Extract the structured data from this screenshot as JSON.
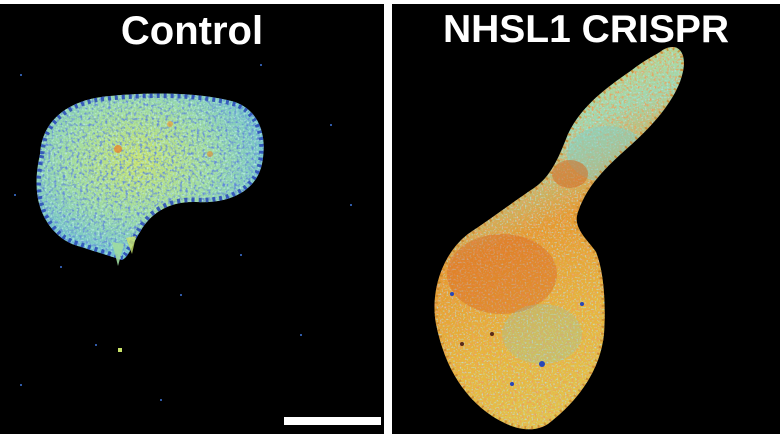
{
  "panels": [
    {
      "title": "Control"
    },
    {
      "title": "NHSL1 CRISPR"
    }
  ],
  "colors": {
    "background": "#000000",
    "separator": "#ffffff",
    "low": "#1f3fb0",
    "mid": "#7fd3c8",
    "high": "#e9e04a",
    "max": "#d8561c"
  }
}
